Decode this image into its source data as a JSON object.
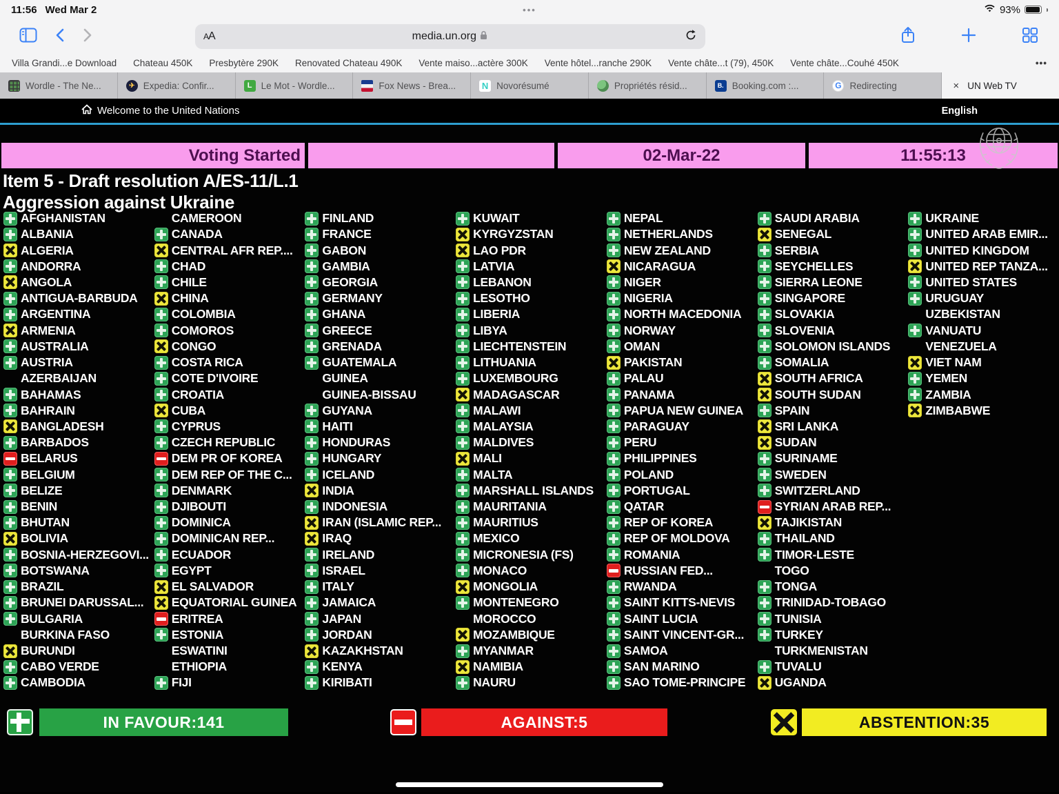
{
  "status_bar": {
    "time": "11:56",
    "date": "Wed Mar 2",
    "battery": "93%",
    "app_switcher_dots": "•••"
  },
  "browser": {
    "reader_label": "AA",
    "url": "media.un.org",
    "bookmarks": [
      "Villa Grandi...e Download",
      "Chateau 450K",
      "Presbytère 290K",
      "Renovated Chateau 490K",
      "Vente maiso...actère 300K",
      "Vente hôtel...ranche 290K",
      "Vente châte...t (79), 450K",
      "Vente châte...Couhé 450K"
    ],
    "bookmarks_more": "•••",
    "tabs": [
      {
        "label": "Wordle - The Ne...",
        "icon": "wordle",
        "active": false
      },
      {
        "label": "Expedia: Confir...",
        "icon": "expedia",
        "active": false
      },
      {
        "label": "Le Mot - Wordle...",
        "icon": "lemot",
        "active": false
      },
      {
        "label": "Fox News - Brea...",
        "icon": "fox",
        "active": false
      },
      {
        "label": "Novorésumé",
        "icon": "novoresume",
        "active": false
      },
      {
        "label": "Propriétés résid...",
        "icon": "properties",
        "active": false
      },
      {
        "label": "Booking.com :...",
        "icon": "booking",
        "active": false
      },
      {
        "label": "Redirecting",
        "icon": "google",
        "active": false
      },
      {
        "label": "UN Web TV",
        "icon": "close",
        "active": true
      }
    ]
  },
  "un_header": {
    "title": "Welcome to the United Nations",
    "language": "English"
  },
  "voting": {
    "status": "Voting Started",
    "date": "02-Mar-22",
    "time": "11:55:13",
    "item_line1": "Item 5 - Draft resolution A/ES-11/L.1",
    "item_line2": "Aggression against Ukraine",
    "legend": {
      "favour": "IN FAVOUR:141",
      "against": "AGAINST:5",
      "abstention": "ABSTENTION:35"
    },
    "vote_colors": {
      "favour": "#2da456",
      "against": "#e01e1e",
      "abstention": "#ede73d",
      "panel_pink": "#f99ced"
    },
    "columns": [
      [
        {
          "n": "AFGHANISTAN",
          "v": "Y"
        },
        {
          "n": "ALBANIA",
          "v": "Y"
        },
        {
          "n": "ALGERIA",
          "v": "A"
        },
        {
          "n": "ANDORRA",
          "v": "Y"
        },
        {
          "n": "ANGOLA",
          "v": "A"
        },
        {
          "n": "ANTIGUA-BARBUDA",
          "v": "Y"
        },
        {
          "n": "ARGENTINA",
          "v": "Y"
        },
        {
          "n": "ARMENIA",
          "v": "A"
        },
        {
          "n": "AUSTRALIA",
          "v": "Y"
        },
        {
          "n": "AUSTRIA",
          "v": "Y"
        },
        {
          "n": "AZERBAIJAN",
          "v": ""
        },
        {
          "n": "BAHAMAS",
          "v": "Y"
        },
        {
          "n": "BAHRAIN",
          "v": "Y"
        },
        {
          "n": "BANGLADESH",
          "v": "A"
        },
        {
          "n": "BARBADOS",
          "v": "Y"
        },
        {
          "n": "BELARUS",
          "v": "N"
        },
        {
          "n": "BELGIUM",
          "v": "Y"
        },
        {
          "n": "BELIZE",
          "v": "Y"
        },
        {
          "n": "BENIN",
          "v": "Y"
        },
        {
          "n": "BHUTAN",
          "v": "Y"
        },
        {
          "n": "BOLIVIA",
          "v": "A"
        },
        {
          "n": "BOSNIA-HERZEGOVI...",
          "v": "Y"
        },
        {
          "n": "BOTSWANA",
          "v": "Y"
        },
        {
          "n": "BRAZIL",
          "v": "Y"
        },
        {
          "n": "BRUNEI DARUSSAL...",
          "v": "Y"
        },
        {
          "n": "BULGARIA",
          "v": "Y"
        },
        {
          "n": "BURKINA FASO",
          "v": ""
        },
        {
          "n": "BURUNDI",
          "v": "A"
        },
        {
          "n": "CABO VERDE",
          "v": "Y"
        },
        {
          "n": "CAMBODIA",
          "v": "Y"
        }
      ],
      [
        {
          "n": "CAMEROON",
          "v": ""
        },
        {
          "n": "CANADA",
          "v": "Y"
        },
        {
          "n": "CENTRAL AFR REP....",
          "v": "A"
        },
        {
          "n": "CHAD",
          "v": "Y"
        },
        {
          "n": "CHILE",
          "v": "Y"
        },
        {
          "n": "CHINA",
          "v": "A"
        },
        {
          "n": "COLOMBIA",
          "v": "Y"
        },
        {
          "n": "COMOROS",
          "v": "Y"
        },
        {
          "n": "CONGO",
          "v": "A"
        },
        {
          "n": "COSTA RICA",
          "v": "Y"
        },
        {
          "n": "COTE D'IVOIRE",
          "v": "Y"
        },
        {
          "n": "CROATIA",
          "v": "Y"
        },
        {
          "n": "CUBA",
          "v": "A"
        },
        {
          "n": "CYPRUS",
          "v": "Y"
        },
        {
          "n": "CZECH REPUBLIC",
          "v": "Y"
        },
        {
          "n": "DEM PR OF KOREA",
          "v": "N"
        },
        {
          "n": "DEM REP OF THE C...",
          "v": "Y"
        },
        {
          "n": "DENMARK",
          "v": "Y"
        },
        {
          "n": "DJIBOUTI",
          "v": "Y"
        },
        {
          "n": "DOMINICA",
          "v": "Y"
        },
        {
          "n": "DOMINICAN REP...",
          "v": "Y"
        },
        {
          "n": "ECUADOR",
          "v": "Y"
        },
        {
          "n": "EGYPT",
          "v": "Y"
        },
        {
          "n": "EL SALVADOR",
          "v": "A"
        },
        {
          "n": "EQUATORIAL GUINEA",
          "v": "A"
        },
        {
          "n": "ERITREA",
          "v": "N"
        },
        {
          "n": "ESTONIA",
          "v": "Y"
        },
        {
          "n": "ESWATINI",
          "v": ""
        },
        {
          "n": "ETHIOPIA",
          "v": ""
        },
        {
          "n": "FIJI",
          "v": "Y"
        }
      ],
      [
        {
          "n": "FINLAND",
          "v": "Y"
        },
        {
          "n": "FRANCE",
          "v": "Y"
        },
        {
          "n": "GABON",
          "v": "Y"
        },
        {
          "n": "GAMBIA",
          "v": "Y"
        },
        {
          "n": "GEORGIA",
          "v": "Y"
        },
        {
          "n": "GERMANY",
          "v": "Y"
        },
        {
          "n": "GHANA",
          "v": "Y"
        },
        {
          "n": "GREECE",
          "v": "Y"
        },
        {
          "n": "GRENADA",
          "v": "Y"
        },
        {
          "n": "GUATEMALA",
          "v": "Y"
        },
        {
          "n": "GUINEA",
          "v": ""
        },
        {
          "n": "GUINEA-BISSAU",
          "v": ""
        },
        {
          "n": "GUYANA",
          "v": "Y"
        },
        {
          "n": "HAITI",
          "v": "Y"
        },
        {
          "n": "HONDURAS",
          "v": "Y"
        },
        {
          "n": "HUNGARY",
          "v": "Y"
        },
        {
          "n": "ICELAND",
          "v": "Y"
        },
        {
          "n": "INDIA",
          "v": "A"
        },
        {
          "n": "INDONESIA",
          "v": "Y"
        },
        {
          "n": "IRAN (ISLAMIC REP...",
          "v": "A"
        },
        {
          "n": "IRAQ",
          "v": "A"
        },
        {
          "n": "IRELAND",
          "v": "Y"
        },
        {
          "n": "ISRAEL",
          "v": "Y"
        },
        {
          "n": "ITALY",
          "v": "Y"
        },
        {
          "n": "JAMAICA",
          "v": "Y"
        },
        {
          "n": "JAPAN",
          "v": "Y"
        },
        {
          "n": "JORDAN",
          "v": "Y"
        },
        {
          "n": "KAZAKHSTAN",
          "v": "A"
        },
        {
          "n": "KENYA",
          "v": "Y"
        },
        {
          "n": "KIRIBATI",
          "v": "Y"
        }
      ],
      [
        {
          "n": "KUWAIT",
          "v": "Y"
        },
        {
          "n": "KYRGYZSTAN",
          "v": "A"
        },
        {
          "n": "LAO PDR",
          "v": "A"
        },
        {
          "n": "LATVIA",
          "v": "Y"
        },
        {
          "n": "LEBANON",
          "v": "Y"
        },
        {
          "n": "LESOTHO",
          "v": "Y"
        },
        {
          "n": "LIBERIA",
          "v": "Y"
        },
        {
          "n": "LIBYA",
          "v": "Y"
        },
        {
          "n": "LIECHTENSTEIN",
          "v": "Y"
        },
        {
          "n": "LITHUANIA",
          "v": "Y"
        },
        {
          "n": "LUXEMBOURG",
          "v": "Y"
        },
        {
          "n": "MADAGASCAR",
          "v": "A"
        },
        {
          "n": "MALAWI",
          "v": "Y"
        },
        {
          "n": "MALAYSIA",
          "v": "Y"
        },
        {
          "n": "MALDIVES",
          "v": "Y"
        },
        {
          "n": "MALI",
          "v": "A"
        },
        {
          "n": "MALTA",
          "v": "Y"
        },
        {
          "n": "MARSHALL ISLANDS",
          "v": "Y"
        },
        {
          "n": "MAURITANIA",
          "v": "Y"
        },
        {
          "n": "MAURITIUS",
          "v": "Y"
        },
        {
          "n": "MEXICO",
          "v": "Y"
        },
        {
          "n": "MICRONESIA (FS)",
          "v": "Y"
        },
        {
          "n": "MONACO",
          "v": "Y"
        },
        {
          "n": "MONGOLIA",
          "v": "A"
        },
        {
          "n": "MONTENEGRO",
          "v": "Y"
        },
        {
          "n": "MOROCCO",
          "v": ""
        },
        {
          "n": "MOZAMBIQUE",
          "v": "A"
        },
        {
          "n": "MYANMAR",
          "v": "Y"
        },
        {
          "n": "NAMIBIA",
          "v": "A"
        },
        {
          "n": "NAURU",
          "v": "Y"
        }
      ],
      [
        {
          "n": "NEPAL",
          "v": "Y"
        },
        {
          "n": "NETHERLANDS",
          "v": "Y"
        },
        {
          "n": "NEW ZEALAND",
          "v": "Y"
        },
        {
          "n": "NICARAGUA",
          "v": "A"
        },
        {
          "n": "NIGER",
          "v": "Y"
        },
        {
          "n": "NIGERIA",
          "v": "Y"
        },
        {
          "n": "NORTH MACEDONIA",
          "v": "Y"
        },
        {
          "n": "NORWAY",
          "v": "Y"
        },
        {
          "n": "OMAN",
          "v": "Y"
        },
        {
          "n": "PAKISTAN",
          "v": "A"
        },
        {
          "n": "PALAU",
          "v": "Y"
        },
        {
          "n": "PANAMA",
          "v": "Y"
        },
        {
          "n": "PAPUA NEW GUINEA",
          "v": "Y"
        },
        {
          "n": "PARAGUAY",
          "v": "Y"
        },
        {
          "n": "PERU",
          "v": "Y"
        },
        {
          "n": "PHILIPPINES",
          "v": "Y"
        },
        {
          "n": "POLAND",
          "v": "Y"
        },
        {
          "n": "PORTUGAL",
          "v": "Y"
        },
        {
          "n": "QATAR",
          "v": "Y"
        },
        {
          "n": "REP OF KOREA",
          "v": "Y"
        },
        {
          "n": "REP OF MOLDOVA",
          "v": "Y"
        },
        {
          "n": "ROMANIA",
          "v": "Y"
        },
        {
          "n": "RUSSIAN FED...",
          "v": "N"
        },
        {
          "n": "RWANDA",
          "v": "Y"
        },
        {
          "n": "SAINT KITTS-NEVIS",
          "v": "Y"
        },
        {
          "n": "SAINT LUCIA",
          "v": "Y"
        },
        {
          "n": "SAINT VINCENT-GR...",
          "v": "Y"
        },
        {
          "n": "SAMOA",
          "v": "Y"
        },
        {
          "n": "SAN MARINO",
          "v": "Y"
        },
        {
          "n": "SAO TOME-PRINCIPE",
          "v": "Y"
        }
      ],
      [
        {
          "n": "SAUDI ARABIA",
          "v": "Y"
        },
        {
          "n": "SENEGAL",
          "v": "A"
        },
        {
          "n": "SERBIA",
          "v": "Y"
        },
        {
          "n": "SEYCHELLES",
          "v": "Y"
        },
        {
          "n": "SIERRA LEONE",
          "v": "Y"
        },
        {
          "n": "SINGAPORE",
          "v": "Y"
        },
        {
          "n": "SLOVAKIA",
          "v": "Y"
        },
        {
          "n": "SLOVENIA",
          "v": "Y"
        },
        {
          "n": "SOLOMON ISLANDS",
          "v": "Y"
        },
        {
          "n": "SOMALIA",
          "v": "Y"
        },
        {
          "n": "SOUTH AFRICA",
          "v": "A"
        },
        {
          "n": "SOUTH SUDAN",
          "v": "A"
        },
        {
          "n": "SPAIN",
          "v": "Y"
        },
        {
          "n": "SRI LANKA",
          "v": "A"
        },
        {
          "n": "SUDAN",
          "v": "A"
        },
        {
          "n": "SURINAME",
          "v": "Y"
        },
        {
          "n": "SWEDEN",
          "v": "Y"
        },
        {
          "n": "SWITZERLAND",
          "v": "Y"
        },
        {
          "n": "SYRIAN ARAB REP...",
          "v": "N"
        },
        {
          "n": "TAJIKISTAN",
          "v": "A"
        },
        {
          "n": "THAILAND",
          "v": "Y"
        },
        {
          "n": "TIMOR-LESTE",
          "v": "Y"
        },
        {
          "n": "TOGO",
          "v": ""
        },
        {
          "n": "TONGA",
          "v": "Y"
        },
        {
          "n": "TRINIDAD-TOBAGO",
          "v": "Y"
        },
        {
          "n": "TUNISIA",
          "v": "Y"
        },
        {
          "n": "TURKEY",
          "v": "Y"
        },
        {
          "n": "TURKMENISTAN",
          "v": ""
        },
        {
          "n": "TUVALU",
          "v": "Y"
        },
        {
          "n": "UGANDA",
          "v": "A"
        }
      ],
      [
        {
          "n": "UKRAINE",
          "v": "Y"
        },
        {
          "n": "UNITED ARAB EMIR...",
          "v": "Y"
        },
        {
          "n": "UNITED KINGDOM",
          "v": "Y"
        },
        {
          "n": "UNITED REP TANZA...",
          "v": "A"
        },
        {
          "n": "UNITED STATES",
          "v": "Y"
        },
        {
          "n": "URUGUAY",
          "v": "Y"
        },
        {
          "n": "UZBEKISTAN",
          "v": ""
        },
        {
          "n": "VANUATU",
          "v": "Y"
        },
        {
          "n": "VENEZUELA",
          "v": ""
        },
        {
          "n": "VIET NAM",
          "v": "A"
        },
        {
          "n": "YEMEN",
          "v": "Y"
        },
        {
          "n": "ZAMBIA",
          "v": "Y"
        },
        {
          "n": "ZIMBABWE",
          "v": "A"
        }
      ]
    ]
  }
}
